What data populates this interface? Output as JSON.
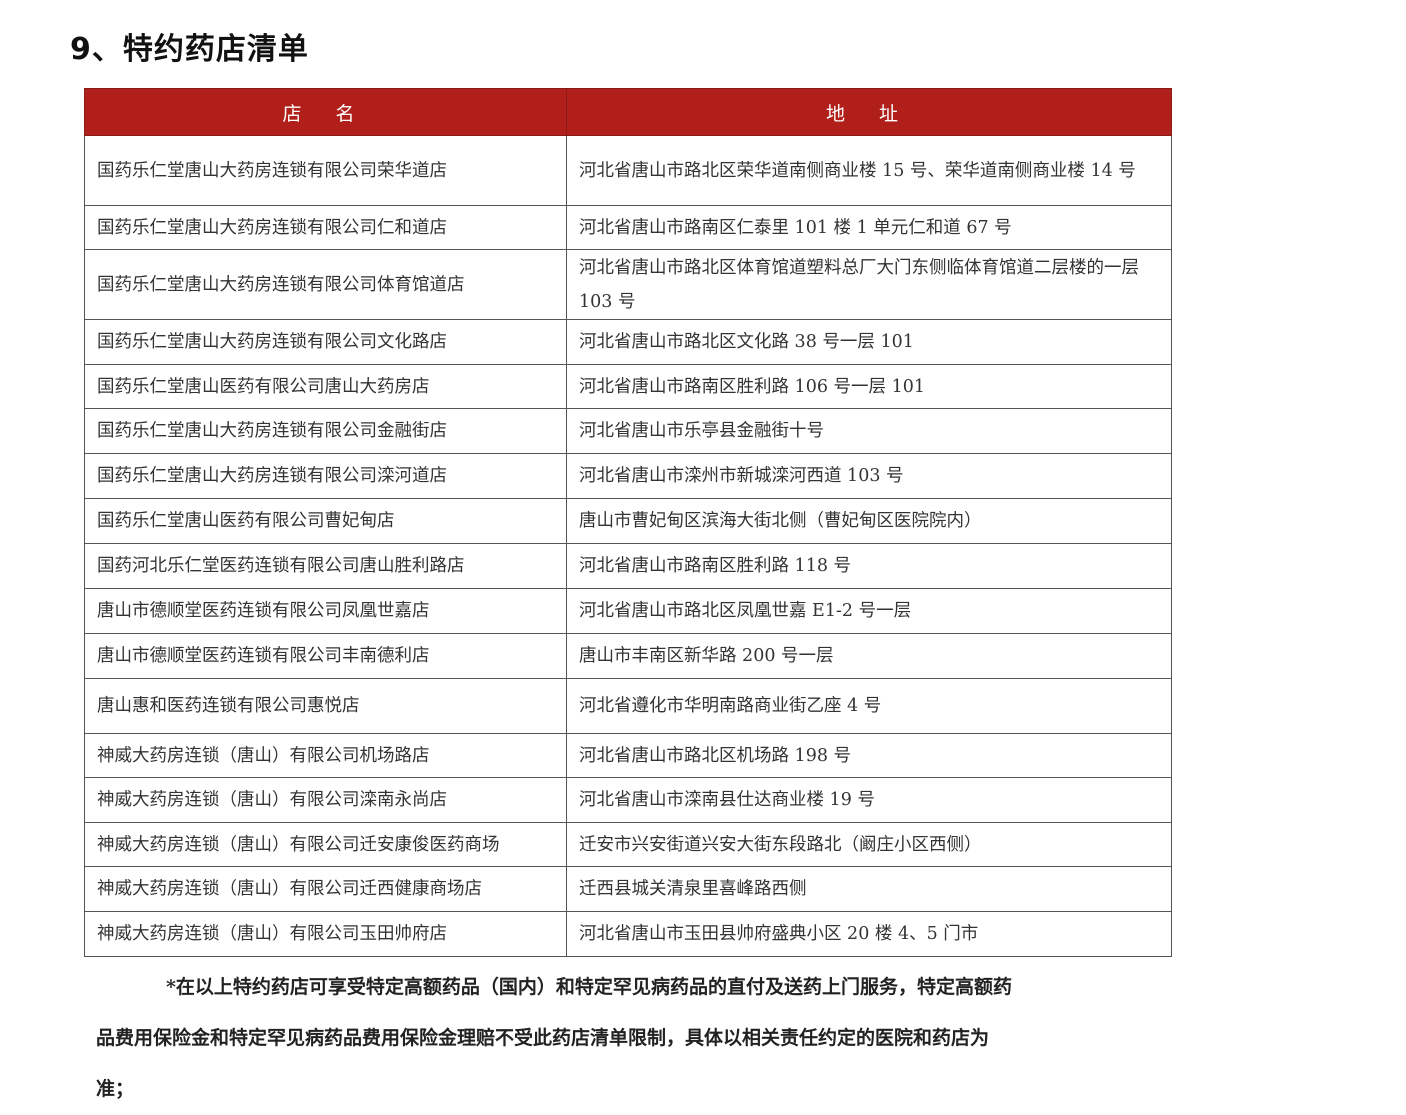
{
  "title": "9、特约药店清单",
  "table": {
    "headers": [
      "店 名",
      "地 址"
    ],
    "rows": [
      {
        "name": "国药乐仁堂唐山大药房连锁有限公司荣华道店",
        "address": "河北省唐山市路北区荣华道南侧商业楼 15 号、荣华道南侧商业楼 14 号"
      },
      {
        "name": "国药乐仁堂唐山大药房连锁有限公司仁和道店",
        "address": "河北省唐山市路南区仁泰里 101 楼 1 单元仁和道 67 号"
      },
      {
        "name": "国药乐仁堂唐山大药房连锁有限公司体育馆道店",
        "address": "河北省唐山市路北区体育馆道塑料总厂大门东侧临体育馆道二层楼的一层 103 号"
      },
      {
        "name": "国药乐仁堂唐山大药房连锁有限公司文化路店",
        "address": "河北省唐山市路北区文化路 38 号一层 101"
      },
      {
        "name": "国药乐仁堂唐山医药有限公司唐山大药房店",
        "address": "河北省唐山市路南区胜利路 106 号一层 101"
      },
      {
        "name": "国药乐仁堂唐山大药房连锁有限公司金融街店",
        "address": "河北省唐山市乐亭县金融街十号"
      },
      {
        "name": "国药乐仁堂唐山大药房连锁有限公司滦河道店",
        "address": "河北省唐山市滦州市新城滦河西道 103 号"
      },
      {
        "name": "国药乐仁堂唐山医药有限公司曹妃甸店",
        "address": "唐山市曹妃甸区滨海大街北侧（曹妃甸区医院院内）"
      },
      {
        "name": "国药河北乐仁堂医药连锁有限公司唐山胜利路店",
        "address": "河北省唐山市路南区胜利路 118 号"
      },
      {
        "name": "唐山市德顺堂医药连锁有限公司凤凰世嘉店",
        "address": "河北省唐山市路北区凤凰世嘉 E1-2 号一层"
      },
      {
        "name": "唐山市德顺堂医药连锁有限公司丰南德利店",
        "address": "唐山市丰南区新华路 200 号一层"
      },
      {
        "name": "唐山惠和医药连锁有限公司惠悦店",
        "address": "河北省遵化市华明南路商业街乙座 4 号"
      },
      {
        "name": "神威大药房连锁（唐山）有限公司机场路店",
        "address": "河北省唐山市路北区机场路 198 号"
      },
      {
        "name": "神威大药房连锁（唐山）有限公司滦南永尚店",
        "address": "河北省唐山市滦南县仕达商业楼 19 号"
      },
      {
        "name": "神威大药房连锁（唐山）有限公司迁安康俊医药商场",
        "address": "迁安市兴安街道兴安大街东段路北（阚庄小区西侧）"
      },
      {
        "name": "神威大药房连锁（唐山）有限公司迁西健康商场店",
        "address": "迁西县城关清泉里喜峰路西侧"
      },
      {
        "name": "神威大药房连锁（唐山）有限公司玉田帅府店",
        "address": "河北省唐山市玉田县帅府盛典小区 20 楼 4、5 门市"
      }
    ]
  },
  "note": "*在以上特约药店可享受特定高额药品（国内）和特定罕见病药品的直付及送药上门服务，特定高额药品费用保险金和特定罕见病药品费用保险金理赔不受此药店清单限制，具体以相关责任约定的医院和药店为准；"
}
